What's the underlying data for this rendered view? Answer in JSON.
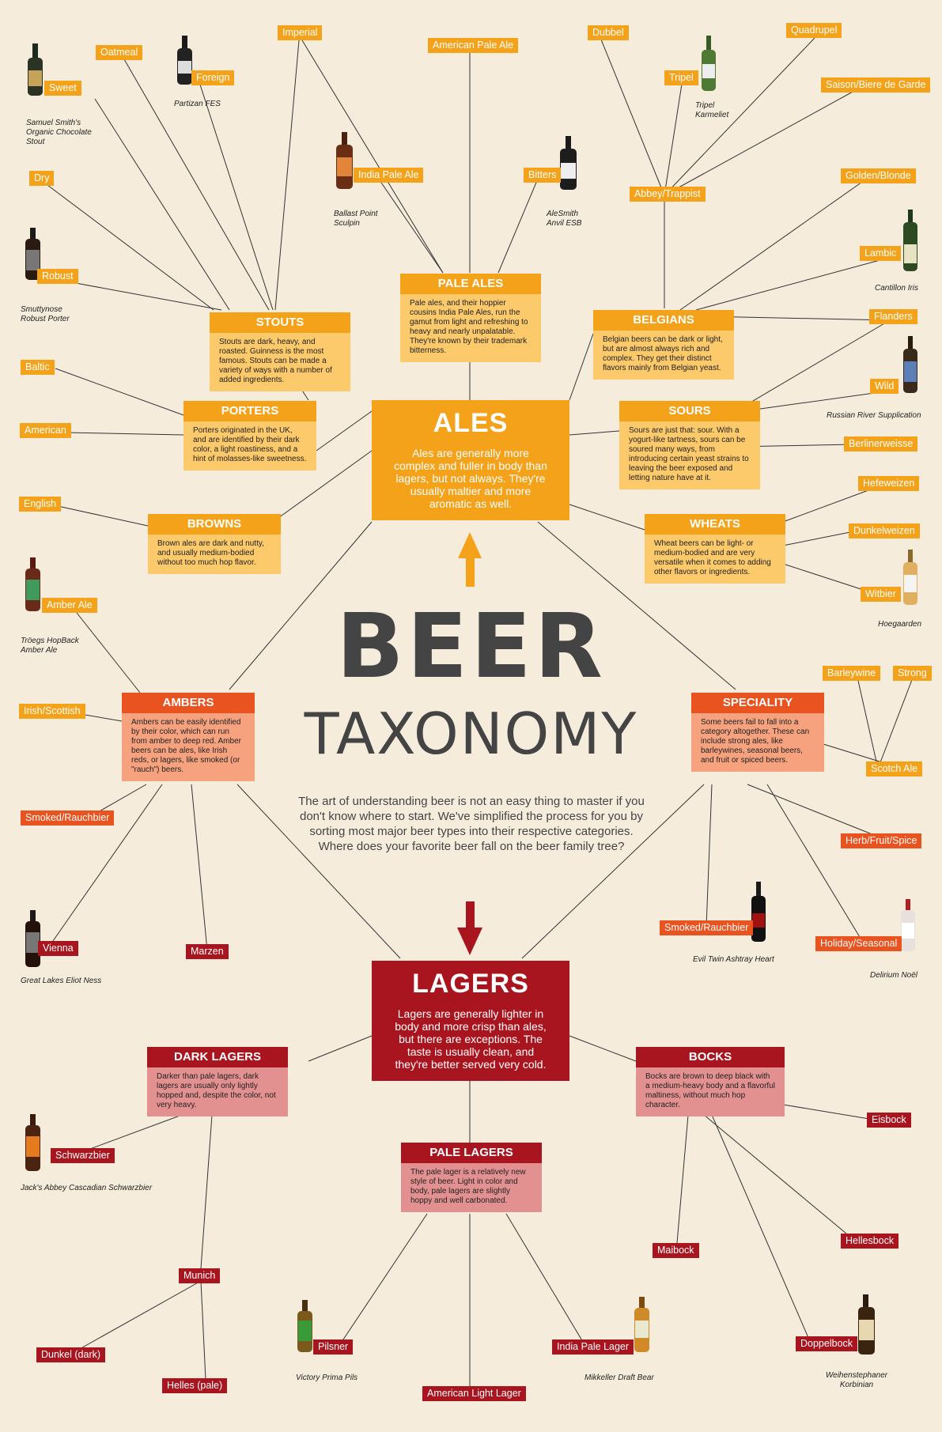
{
  "title": {
    "line1": "BEER",
    "line2": "TAXONOMY"
  },
  "intro": "The art of understanding beer is not an easy thing to master if you don't know where to start. We've simplified the process for you by sorting most major beer types into their respective categories. Where does your favorite beer fall on the beer family tree?",
  "colors": {
    "ale": "#f5a21b",
    "amber": "#e8531f",
    "lager": "#a8151f",
    "background": "#f6ecdc",
    "text": "#444444"
  },
  "ales": {
    "title": "ALES",
    "body": "Ales are generally more complex and fuller in body than lagers, but not always. They're usually maltier and more aromatic as well."
  },
  "lagers": {
    "title": "LAGERS",
    "body": "Lagers are generally lighter in body and more crisp than ales, but there are exceptions. The taste is usually clean, and they're better served very cold."
  },
  "boxes": {
    "stouts": {
      "title": "STOUTS",
      "body": "Stouts are dark, heavy, and roasted. Guinness is the most famous. Stouts can be made a variety of ways with a number of added ingredients."
    },
    "pale_ales": {
      "title": "PALE ALES",
      "body": "Pale ales, and their hoppier cousins India Pale Ales, run the gamut from light and refreshing to heavy and nearly unpalatable. They're known by their trademark bitterness."
    },
    "belgians": {
      "title": "BELGIANS",
      "body": "Belgian beers can be dark or light, but are almost always rich and complex. They get their distinct flavors mainly from Belgian yeast."
    },
    "porters": {
      "title": "PORTERS",
      "body": "Porters originated in the UK, and are identified by their dark color, a light roastiness, and a hint of molasses-like sweetness."
    },
    "sours": {
      "title": "SOURS",
      "body": "Sours are just that: sour. With a yogurt-like tartness, sours can be soured many ways, from introducing certain yeast strains to leaving the beer exposed and letting nature have at it."
    },
    "browns": {
      "title": "BROWNS",
      "body": "Brown ales are dark and nutty, and usually medium-bodied without too much hop flavor."
    },
    "wheats": {
      "title": "WHEATS",
      "body": "Wheat beers can be light- or medium-bodied and are very versatile when it comes to adding other flavors or ingredients."
    },
    "ambers": {
      "title": "AMBERS",
      "body": "Ambers can be easily identified by their color, which can run from amber to deep red. Amber beers can be ales, like Irish reds, or lagers, like smoked (or \"rauch\") beers."
    },
    "speciality": {
      "title": "SPECIALITY",
      "body": "Some beers fail to fall into a category altogether. These can include strong ales, like barleywines, seasonal beers, and fruit or spiced beers."
    },
    "dark_lagers": {
      "title": "DARK LAGERS",
      "body": "Darker than pale lagers, dark lagers are usually only lightly hopped and, despite the color, not very heavy."
    },
    "bocks": {
      "title": "BOCKS",
      "body": "Bocks are brown to deep black with a medium-heavy body and a flavorful maltiness, without much hop character."
    },
    "pale_lagers": {
      "title": "PALE LAGERS",
      "body": "The pale lager is a relatively new style of beer. Light in color and body, pale lagers are slightly hoppy and well carbonated."
    }
  },
  "tags": {
    "oatmeal": "Oatmeal",
    "imperial": "Imperial",
    "american_pale_ale": "American Pale Ale",
    "dubbel": "Dubbel",
    "quadrupel": "Quadrupel",
    "sweet": "Sweet",
    "foreign": "Foreign",
    "tripel": "Tripel",
    "saison": "Saison/Biere de Garde",
    "india_pale_ale": "India Pale Ale",
    "bitters": "Bitters",
    "abbey": "Abbey/Trappist",
    "dry": "Dry",
    "golden": "Golden/Blonde",
    "lambic": "Lambic",
    "robust": "Robust",
    "flanders": "Flanders",
    "baltic": "Baltic",
    "wild": "Wild",
    "american": "American",
    "berlinerweisse": "Berlinerweisse",
    "hefeweizen": "Hefeweizen",
    "english": "English",
    "dunkelweizen": "Dunkelweizen",
    "witbier": "Witbier",
    "amber_ale": "Amber Ale",
    "barleywine": "Barleywine",
    "strong": "Strong",
    "irish": "Irish/Scottish",
    "scotch_ale": "Scotch Ale",
    "smoked1": "Smoked/Rauchbier",
    "herb": "Herb/Fruit/Spice",
    "smoked2": "Smoked/Rauchbier",
    "holiday": "Holiday/Seasonal",
    "vienna": "Vienna",
    "marzen": "Marzen",
    "eisbock": "Eisbock",
    "schwarzbier": "Schwarzbier",
    "maibock": "Maibock",
    "hellesbock": "Hellesbock",
    "munich": "Munich",
    "pilsner": "Pilsner",
    "ipl": "India Pale Lager",
    "doppelbock": "Doppelbock",
    "dunkel": "Dunkel (dark)",
    "helles": "Helles (pale)",
    "american_light_lager": "American Light Lager"
  },
  "captions": {
    "samuel_smith": "Samuel Smith's Organic Chocolate Stout",
    "partizan": "Partizan FES",
    "karmeliet": "Tripel Karmeliet",
    "ballast": "Ballast Point Sculpin",
    "alesmith": "AleSmith Anvil ESB",
    "cantillon": "Cantillon Iris",
    "smuttynose": "Smuttynose Robust Porter",
    "russian_river": "Russian River Supplication",
    "hoegaarden": "Hoegaarden",
    "troegs": "Tröegs HopBack Amber Ale",
    "evil_twin": "Evil Twin Ashtray Heart",
    "delirium": "Delirium Noël",
    "great_lakes": "Great Lakes Eliot Ness",
    "jacks_abbey": "Jack's Abbey Cascadian Schwarzbier",
    "victory": "Victory Prima Pils",
    "mikkeller": "Mikkeller Draft Bear",
    "weihenstephaner": "Weihenstephaner Korbinian"
  }
}
